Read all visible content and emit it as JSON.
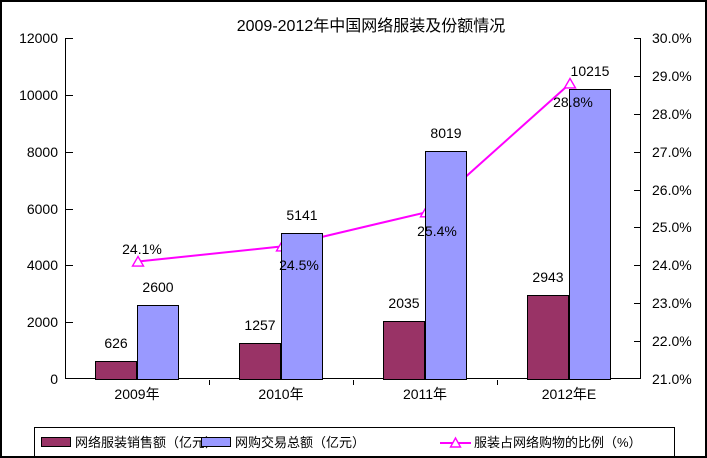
{
  "chart_data": {
    "type": "bar",
    "subtype": "bar-line-combo",
    "title": "2009-2012年中国网络服装及份额情况",
    "categories": [
      "2009年",
      "2010年",
      "2011年",
      "2012年E"
    ],
    "series": [
      {
        "name": "网络服装销售额（亿元）",
        "type": "bar",
        "axis": "left",
        "color": "#993366",
        "values": [
          626,
          1257,
          2035,
          2943
        ],
        "labels": [
          "626",
          "1257",
          "2035",
          "2943"
        ]
      },
      {
        "name": "网购交易总额（亿元）",
        "type": "bar",
        "axis": "left",
        "color": "#9999FF",
        "values": [
          2600,
          5141,
          8019,
          10215
        ],
        "labels": [
          "2600",
          "5141",
          "8019",
          "10215"
        ]
      },
      {
        "name": "服装占网络购物的比例（%）",
        "type": "line",
        "axis": "right",
        "color": "#FF00FF",
        "marker": "open-triangle",
        "values": [
          24.1,
          24.5,
          25.4,
          28.8
        ],
        "labels": [
          "24.1%",
          "24.5%",
          "25.4%",
          "28.8%"
        ],
        "label_offsets": [
          {
            "dx": 5,
            "dy": -20
          },
          {
            "dx": 18,
            "dy": 12
          },
          {
            "dx": 12,
            "dy": 12
          },
          {
            "dx": 4,
            "dy": 12
          }
        ]
      }
    ],
    "axes": {
      "left": {
        "min": 0,
        "max": 12000,
        "step": 2000,
        "ticks": [
          "0",
          "2000",
          "4000",
          "6000",
          "8000",
          "10000",
          "12000"
        ]
      },
      "right": {
        "min": 21,
        "max": 30,
        "step": 1,
        "ticks": [
          "21.0%",
          "22.0%",
          "23.0%",
          "24.0%",
          "25.0%",
          "26.0%",
          "27.0%",
          "28.0%",
          "29.0%",
          "30.0%"
        ]
      }
    },
    "grid": false,
    "legend_position": "bottom",
    "colors": {
      "axis": "#000000",
      "text": "#000000",
      "background": "#FFFFFF"
    }
  }
}
